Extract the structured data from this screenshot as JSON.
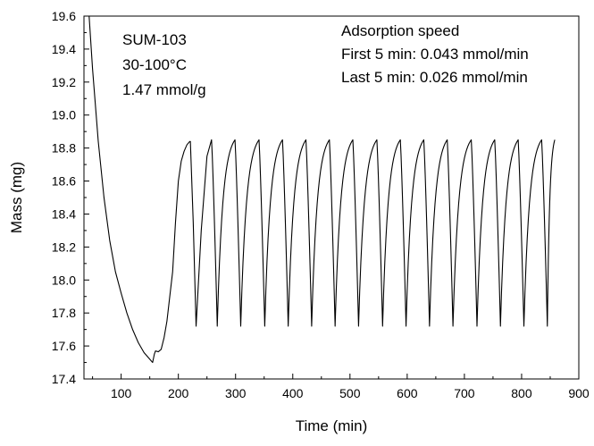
{
  "chart_data": {
    "type": "line",
    "xlabel": "Time (min)",
    "ylabel": "Mass (mg)",
    "xlim": [
      35,
      900
    ],
    "ylim": [
      17.4,
      19.6
    ],
    "xticks": [
      100,
      200,
      300,
      400,
      500,
      600,
      700,
      800,
      900
    ],
    "yticks": [
      17.4,
      17.6,
      17.8,
      18.0,
      18.2,
      18.4,
      18.6,
      18.8,
      19.0,
      19.2,
      19.4,
      19.6
    ],
    "ytick_labels": [
      "17.4",
      "17.6",
      "17.8",
      "18.0",
      "18.2",
      "18.4",
      "18.6",
      "18.8",
      "19.0",
      "19.2",
      "19.4",
      "19.6"
    ],
    "grid": false,
    "legend": "none",
    "line_color": "#000000",
    "annotations_left": [
      "SUM-103",
      "30-100°C",
      "1.47 mmol/g"
    ],
    "annotations_right": [
      "Adsorption speed",
      "First 5 min: 0.043 mmol/min",
      "Last 5 min: 0.026 mmol/min"
    ],
    "series": [
      {
        "points": [
          [
            44,
            19.6
          ],
          [
            50,
            19.28
          ],
          [
            60,
            18.84
          ],
          [
            70,
            18.5
          ],
          [
            80,
            18.24
          ],
          [
            90,
            18.05
          ],
          [
            100,
            17.92
          ],
          [
            110,
            17.8
          ],
          [
            120,
            17.7
          ],
          [
            130,
            17.62
          ],
          [
            140,
            17.56
          ],
          [
            150,
            17.52
          ],
          [
            155,
            17.5
          ],
          [
            158,
            17.55
          ],
          [
            160,
            17.57
          ],
          [
            165,
            17.565
          ],
          [
            170,
            17.58
          ],
          [
            175,
            17.65
          ],
          [
            180,
            17.75
          ],
          [
            185,
            17.9
          ],
          [
            190,
            18.05
          ],
          [
            195,
            18.35
          ],
          [
            200,
            18.6
          ],
          [
            205,
            18.72
          ],
          [
            210,
            18.78
          ],
          [
            215,
            18.82
          ],
          [
            220,
            18.84
          ],
          [
            221,
            18.84
          ],
          [
            226,
            18.35
          ],
          [
            231,
            17.72
          ],
          [
            240,
            18.3
          ],
          [
            250,
            18.75
          ],
          [
            258,
            18.85
          ]
        ],
        "cycles": {
          "peaks": [
            258,
            299,
            341,
            382,
            423,
            464,
            505,
            547,
            588,
            629,
            670,
            712,
            753,
            794,
            835,
            858
          ],
          "peak_mass": 18.85,
          "valley_mass": 17.72,
          "valley_offset_min": 10
        }
      }
    ]
  }
}
